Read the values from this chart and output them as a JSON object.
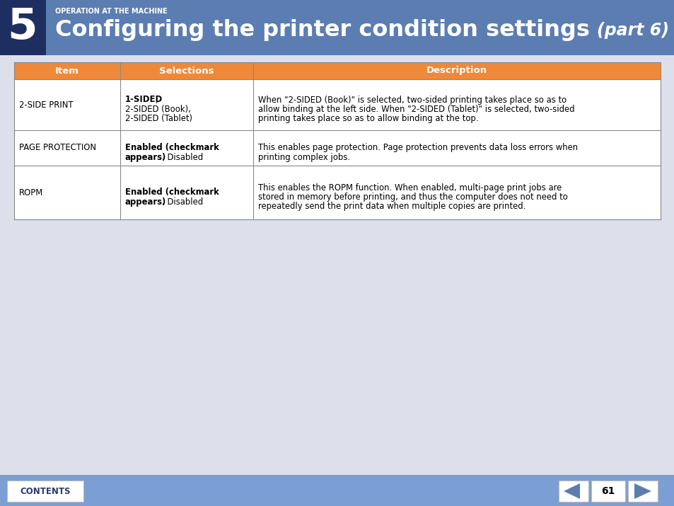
{
  "bg_color": "#dde0ea",
  "header_blue": "#5b7db1",
  "number_bg": "#1e2e60",
  "number_text": "5",
  "op_label": "OPERATION AT THE MACHINE",
  "main_title": "Configuring the printer condition settings",
  "part_label": "(part 6)",
  "table_header_bg": "#f0883a",
  "table_border": "#999999",
  "footer_bg": "#7b9fd4",
  "footer_text_color": "#2d3a6e",
  "page_number": "61",
  "col_headers": [
    "Item",
    "Selections",
    "Description"
  ],
  "rows": [
    {
      "item": "2-SIDE PRINT",
      "sel_bold": "1-SIDED",
      "sel_normal_inline": ",",
      "sel_extra": [
        "2-SIDED (Book),",
        "2-SIDED (Tablet)"
      ],
      "desc_lines": [
        "When \"2-SIDED (Book)\" is selected, two-sided printing takes place so as to",
        "allow binding at the left side. When \"2-SIDED (Tablet)\" is selected, two-sided",
        "printing takes place so as to allow binding at the top."
      ]
    },
    {
      "item": "PAGE PROTECTION",
      "sel_bold": "Enabled (checkmark",
      "sel_bold2": "appears)",
      "sel_normal_inline": ", Disabled",
      "sel_extra": [],
      "desc_lines": [
        "This enables page protection. Page protection prevents data loss errors when",
        "printing complex jobs."
      ]
    },
    {
      "item": "ROPM",
      "sel_bold": "Enabled (checkmark",
      "sel_bold2": "appears)",
      "sel_normal_inline": ", Disabled",
      "sel_extra": [],
      "desc_lines": [
        "This enables the ROPM function. When enabled, multi-page print jobs are",
        "stored in memory before printing, and thus the computer does not need to",
        "repeatedly send the print data when multiple copies are printed."
      ]
    }
  ]
}
